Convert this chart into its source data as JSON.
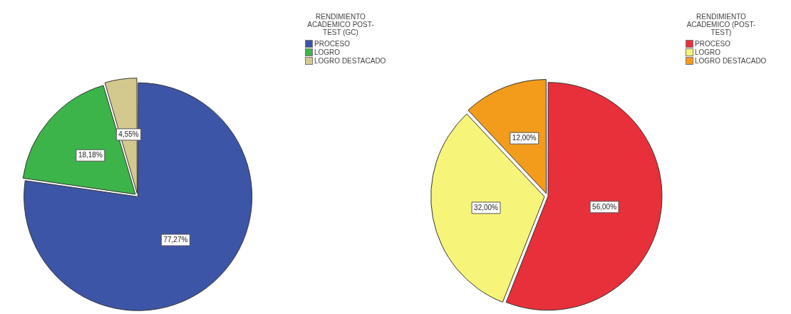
{
  "chart_data": [
    {
      "type": "pie",
      "legend_title": "RENDIMIENTO ACADEMICO POST-TEST (GC)",
      "legend": "top right",
      "categories": [
        "PROCESO",
        "LOGRO",
        "LOGRO DESTACADO"
      ],
      "values": [
        77.27,
        18.18,
        4.55
      ],
      "colors": [
        "#3d55a6",
        "#3cb44a",
        "#d3c98f"
      ],
      "value_labels": [
        "77,27%",
        "18,18%",
        "4,55%"
      ]
    },
    {
      "type": "pie",
      "legend_title": "RENDIMIENTO ACADEMICO (POST-TEST)",
      "legend": "top right",
      "categories": [
        "PROCESO",
        "LOGRO",
        "LOGRO DESTACADO"
      ],
      "values": [
        56.0,
        32.0,
        12.0
      ],
      "colors": [
        "#e8303a",
        "#f6f57a",
        "#f39c1c"
      ],
      "value_labels": [
        "56,00%",
        "32,00%",
        "12,00%"
      ]
    }
  ]
}
